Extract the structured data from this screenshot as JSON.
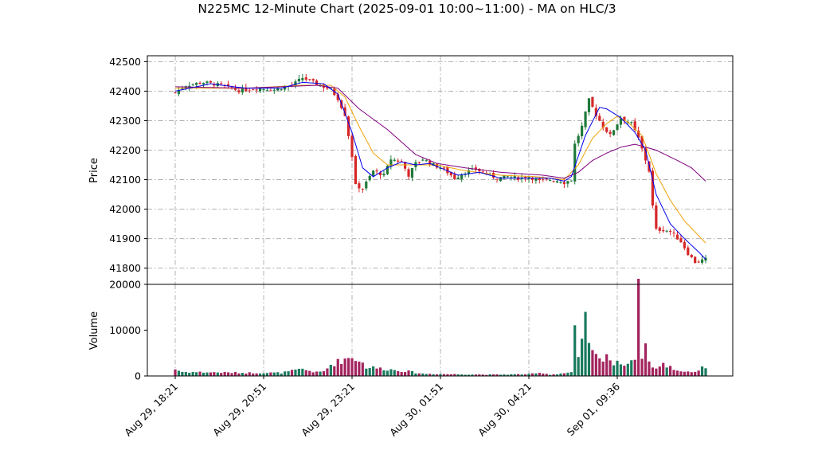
{
  "chart_data": {
    "type": "candlestick",
    "title": "N225MC 12-Minute Chart (2025-09-01 10:00~11:00) - MA on HLC/3",
    "price_panel": {
      "ylabel": "Price",
      "ylim": [
        41745,
        42520
      ],
      "yticks": [
        41800,
        41900,
        42000,
        42100,
        42200,
        42300,
        42400,
        42500
      ],
      "grid": true
    },
    "volume_panel": {
      "ylabel": "Volume",
      "ylim": [
        0,
        20000
      ],
      "yticks": [
        0,
        10000,
        20000
      ]
    },
    "x_tick_labels": [
      "Aug 29, 18:21",
      "Aug 29, 20:51",
      "Aug 29, 23:21",
      "Aug 30, 01:51",
      "Aug 30, 04:21",
      "Sep 01, 09:36"
    ],
    "x_tick_positions": [
      0,
      25,
      50,
      75,
      100,
      125
    ],
    "bar_count": 151,
    "colors": {
      "up": "#1f7a3a",
      "down": "#d62728",
      "vol_up": "#1a7a5e",
      "vol_down": "#a3235e",
      "ma_fast": "#0000ee",
      "ma_mid": "#f0a30a",
      "ma_slow": "#800080",
      "grid": "#b0b0b0"
    },
    "close_anchors": [
      [
        0,
        42395
      ],
      [
        3,
        42420
      ],
      [
        8,
        42430
      ],
      [
        13,
        42420
      ],
      [
        18,
        42402
      ],
      [
        23,
        42410
      ],
      [
        28,
        42405
      ],
      [
        33,
        42420
      ],
      [
        36,
        42445
      ],
      [
        40,
        42425
      ],
      [
        44,
        42405
      ],
      [
        46,
        42375
      ],
      [
        48,
        42320
      ],
      [
        50,
        42180
      ],
      [
        51,
        42080
      ],
      [
        53,
        42070
      ],
      [
        56,
        42130
      ],
      [
        59,
        42115
      ],
      [
        61,
        42170
      ],
      [
        64,
        42160
      ],
      [
        66,
        42115
      ],
      [
        68,
        42155
      ],
      [
        70,
        42170
      ],
      [
        73,
        42150
      ],
      [
        76,
        42135
      ],
      [
        79,
        42105
      ],
      [
        82,
        42125
      ],
      [
        85,
        42135
      ],
      [
        88,
        42120
      ],
      [
        91,
        42105
      ],
      [
        94,
        42110
      ],
      [
        97,
        42105
      ],
      [
        100,
        42110
      ],
      [
        103,
        42095
      ],
      [
        106,
        42100
      ],
      [
        109,
        42095
      ],
      [
        110,
        42090
      ],
      [
        112,
        42100
      ],
      [
        113,
        42220
      ],
      [
        115,
        42280
      ],
      [
        117,
        42370
      ],
      [
        119,
        42320
      ],
      [
        121,
        42280
      ],
      [
        123,
        42250
      ],
      [
        126,
        42310
      ],
      [
        129,
        42290
      ],
      [
        131,
        42240
      ],
      [
        134,
        42130
      ],
      [
        135,
        42010
      ],
      [
        136,
        41930
      ],
      [
        138,
        41930
      ],
      [
        140,
        41925
      ],
      [
        143,
        41890
      ],
      [
        145,
        41850
      ],
      [
        147,
        41820
      ],
      [
        150,
        41830
      ]
    ],
    "ma_fast": [
      [
        0,
        42400
      ],
      [
        10,
        42425
      ],
      [
        20,
        42410
      ],
      [
        30,
        42410
      ],
      [
        36,
        42430
      ],
      [
        42,
        42425
      ],
      [
        46,
        42390
      ],
      [
        50,
        42260
      ],
      [
        53,
        42140
      ],
      [
        56,
        42110
      ],
      [
        60,
        42140
      ],
      [
        64,
        42160
      ],
      [
        68,
        42150
      ],
      [
        72,
        42155
      ],
      [
        76,
        42135
      ],
      [
        80,
        42115
      ],
      [
        86,
        42125
      ],
      [
        92,
        42105
      ],
      [
        100,
        42105
      ],
      [
        106,
        42105
      ],
      [
        110,
        42095
      ],
      [
        112,
        42110
      ],
      [
        116,
        42250
      ],
      [
        120,
        42345
      ],
      [
        122,
        42340
      ],
      [
        126,
        42310
      ],
      [
        130,
        42260
      ],
      [
        133,
        42200
      ],
      [
        136,
        42050
      ],
      [
        140,
        41950
      ],
      [
        144,
        41900
      ],
      [
        148,
        41855
      ],
      [
        150,
        41830
      ]
    ],
    "ma_mid": [
      [
        0,
        42410
      ],
      [
        20,
        42410
      ],
      [
        36,
        42420
      ],
      [
        44,
        42420
      ],
      [
        48,
        42380
      ],
      [
        52,
        42280
      ],
      [
        56,
        42190
      ],
      [
        60,
        42150
      ],
      [
        66,
        42150
      ],
      [
        74,
        42150
      ],
      [
        82,
        42130
      ],
      [
        92,
        42115
      ],
      [
        102,
        42110
      ],
      [
        110,
        42100
      ],
      [
        114,
        42150
      ],
      [
        118,
        42240
      ],
      [
        122,
        42290
      ],
      [
        125,
        42315
      ],
      [
        128,
        42295
      ],
      [
        132,
        42250
      ],
      [
        136,
        42120
      ],
      [
        140,
        42030
      ],
      [
        144,
        41960
      ],
      [
        148,
        41910
      ],
      [
        150,
        41885
      ]
    ],
    "ma_slow": [
      [
        0,
        42415
      ],
      [
        20,
        42410
      ],
      [
        40,
        42420
      ],
      [
        46,
        42410
      ],
      [
        52,
        42340
      ],
      [
        60,
        42270
      ],
      [
        68,
        42185
      ],
      [
        74,
        42155
      ],
      [
        82,
        42140
      ],
      [
        92,
        42125
      ],
      [
        104,
        42115
      ],
      [
        110,
        42105
      ],
      [
        114,
        42125
      ],
      [
        118,
        42165
      ],
      [
        122,
        42190
      ],
      [
        126,
        42210
      ],
      [
        130,
        42220
      ],
      [
        136,
        42200
      ],
      [
        142,
        42165
      ],
      [
        146,
        42140
      ],
      [
        150,
        42095
      ]
    ],
    "volume_anchors": [
      [
        0,
        1500
      ],
      [
        2,
        900
      ],
      [
        20,
        700
      ],
      [
        30,
        700
      ],
      [
        36,
        1500
      ],
      [
        40,
        800
      ],
      [
        42,
        1000
      ],
      [
        44,
        2500
      ],
      [
        48,
        3800
      ],
      [
        50,
        4200
      ],
      [
        52,
        3600
      ],
      [
        54,
        2000
      ],
      [
        60,
        1500
      ],
      [
        66,
        1000
      ],
      [
        70,
        500
      ],
      [
        78,
        400
      ],
      [
        90,
        300
      ],
      [
        100,
        400
      ],
      [
        104,
        700
      ],
      [
        106,
        300
      ],
      [
        112,
        800
      ],
      [
        113,
        9500
      ],
      [
        114,
        3500
      ],
      [
        116,
        11500
      ],
      [
        118,
        5000
      ],
      [
        120,
        3500
      ],
      [
        122,
        5000
      ],
      [
        124,
        2500
      ],
      [
        126,
        3000
      ],
      [
        128,
        2800
      ],
      [
        130,
        4500
      ],
      [
        131,
        17500
      ],
      [
        132,
        5000
      ],
      [
        133,
        7000
      ],
      [
        134,
        3000
      ],
      [
        136,
        1600
      ],
      [
        138,
        2500
      ],
      [
        140,
        2000
      ],
      [
        142,
        1200
      ],
      [
        146,
        900
      ],
      [
        148,
        1200
      ],
      [
        150,
        2200
      ]
    ]
  }
}
